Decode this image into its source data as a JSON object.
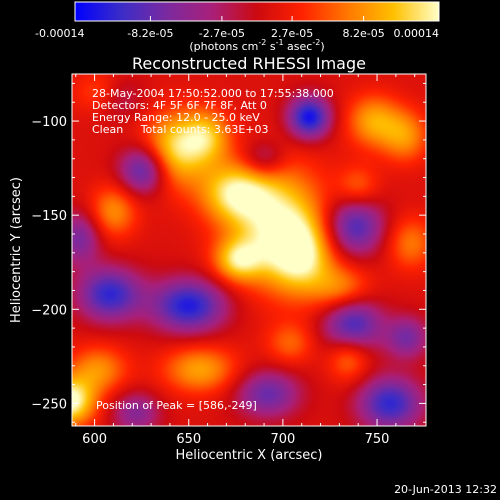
{
  "colorbar": {
    "tick_labels": [
      "-0.00014",
      "-8.2e-05",
      "-2.7e-05",
      "2.7e-05",
      "8.2e-05",
      "0.00014"
    ],
    "tick_values": [
      -0.00014,
      -8.2e-05,
      -2.7e-05,
      2.7e-05,
      8.2e-05,
      0.00014
    ],
    "range": [
      -0.00014,
      0.00014
    ],
    "units_main": "(photons cm",
    "units_exp1": "-2",
    "units_mid": " s",
    "units_exp2": "-1",
    "units_after": " asec",
    "units_exp3": "-2",
    "units_close": ")",
    "colors": [
      "#0000ff",
      "#3a2cc8",
      "#7a2aa0",
      "#a8207a",
      "#cc0a10",
      "#ff2200",
      "#ff7800",
      "#ffc000",
      "#ffffc8"
    ]
  },
  "chart_data": {
    "type": "heatmap",
    "title": "Reconstructed RHESSI Image",
    "xlabel": "Heliocentric X (arcsec)",
    "ylabel": "Heliocentric Y (arcsec)",
    "xlim": [
      588,
      776
    ],
    "ylim": [
      -262,
      -75
    ],
    "x_ticks": [
      600,
      650,
      700,
      750
    ],
    "x_tick_labels": [
      "600",
      "650",
      "700",
      "750"
    ],
    "y_ticks": [
      -250,
      -200,
      -150,
      -100
    ],
    "y_tick_labels": [
      "−250",
      "−200",
      "−150",
      "−100"
    ],
    "grid": false,
    "background_value": 1e-05,
    "components": [
      {
        "x": 697,
        "y": -155,
        "sx": 18,
        "sy": 22,
        "amp": 0.00012
      },
      {
        "x": 674,
        "y": -138,
        "sx": 13,
        "sy": 11,
        "amp": 0.0001
      },
      {
        "x": 710,
        "y": -172,
        "sx": 12,
        "sy": 14,
        "amp": 9e-05
      },
      {
        "x": 676,
        "y": -174,
        "sx": 9,
        "sy": 8,
        "amp": 9e-05
      },
      {
        "x": 643,
        "y": -115,
        "sx": 12,
        "sy": 14,
        "amp": 0.00011
      },
      {
        "x": 660,
        "y": -108,
        "sx": 9,
        "sy": 10,
        "amp": 8e-05
      },
      {
        "x": 748,
        "y": -100,
        "sx": 10,
        "sy": 10,
        "amp": 8e-05
      },
      {
        "x": 765,
        "y": -108,
        "sx": 9,
        "sy": 10,
        "amp": 7e-05
      },
      {
        "x": 610,
        "y": -148,
        "sx": 9,
        "sy": 10,
        "amp": 7e-05
      },
      {
        "x": 605,
        "y": -85,
        "sx": 10,
        "sy": 8,
        "amp": 6e-05
      },
      {
        "x": 602,
        "y": -232,
        "sx": 11,
        "sy": 9,
        "amp": 7e-05
      },
      {
        "x": 656,
        "y": -232,
        "sx": 14,
        "sy": 9,
        "amp": 8e-05
      },
      {
        "x": 732,
        "y": -190,
        "sx": 11,
        "sy": 9,
        "amp": 7e-05
      },
      {
        "x": 735,
        "y": -225,
        "sx": 8,
        "sy": 9,
        "amp": 7e-05
      },
      {
        "x": 768,
        "y": -165,
        "sx": 9,
        "sy": 10,
        "amp": 6e-05
      },
      {
        "x": 740,
        "y": -135,
        "sx": 8,
        "sy": 8,
        "amp": 5e-05
      },
      {
        "x": 704,
        "y": -218,
        "sx": 9,
        "sy": 8,
        "amp": 5e-05
      },
      {
        "x": 586,
        "y": -249,
        "sx": 10,
        "sy": 9,
        "amp": 0.00014
      },
      {
        "x": 714,
        "y": -98,
        "sx": 8,
        "sy": 8,
        "amp": -0.00014
      },
      {
        "x": 650,
        "y": -198,
        "sx": 14,
        "sy": 10,
        "amp": -0.00013
      },
      {
        "x": 608,
        "y": -192,
        "sx": 12,
        "sy": 10,
        "amp": -0.00012
      },
      {
        "x": 737,
        "y": -208,
        "sx": 11,
        "sy": 11,
        "amp": -0.00012
      },
      {
        "x": 626,
        "y": -126,
        "sx": 9,
        "sy": 9,
        "amp": -0.00011
      },
      {
        "x": 738,
        "y": -156,
        "sx": 11,
        "sy": 11,
        "amp": -0.00011
      },
      {
        "x": 757,
        "y": -250,
        "sx": 12,
        "sy": 10,
        "amp": -0.00012
      },
      {
        "x": 692,
        "y": -245,
        "sx": 12,
        "sy": 9,
        "amp": -9e-05
      },
      {
        "x": 622,
        "y": -255,
        "sx": 9,
        "sy": 8,
        "amp": -7e-05
      },
      {
        "x": 766,
        "y": -215,
        "sx": 8,
        "sy": 8,
        "amp": -8e-05
      },
      {
        "x": 592,
        "y": -162,
        "sx": 8,
        "sy": 10,
        "amp": -8e-05
      },
      {
        "x": 612,
        "y": -87,
        "sx": 9,
        "sy": 8,
        "amp": -6e-05
      },
      {
        "x": 690,
        "y": -120,
        "sx": 8,
        "sy": 7,
        "amp": -6e-05
      }
    ],
    "annotations": {
      "line1": "28-May-2004 17:50:52.000 to 17:55:38.000",
      "line2": "Detectors: 4F 5F 6F 7F 8F, Att 0",
      "line3": "Energy Range: 12.0 - 25.0 keV",
      "line4": "Clean     Total counts: 3.63E+03",
      "peak": "Position of Peak = [586,-249]"
    }
  },
  "footer": {
    "timestamp": "20-Jun-2013 12:32"
  }
}
